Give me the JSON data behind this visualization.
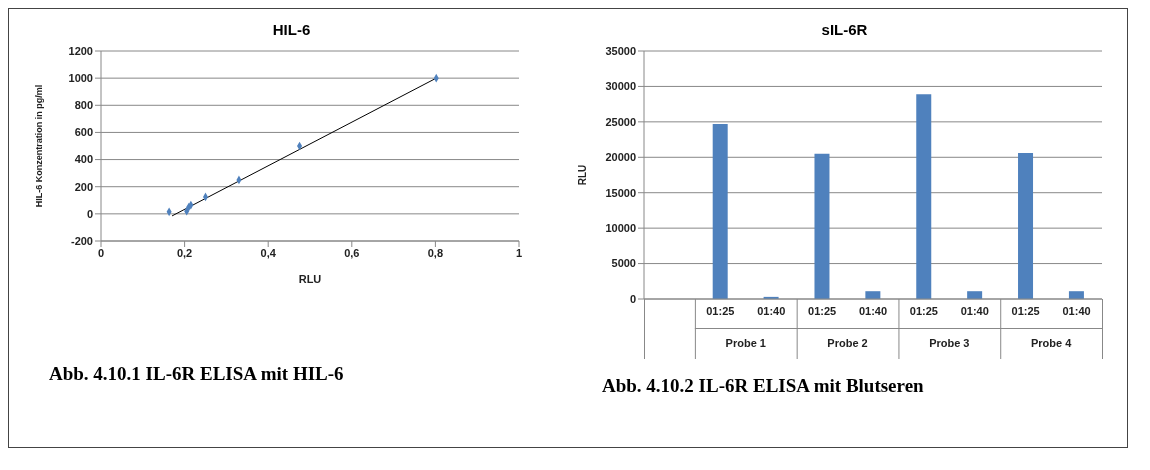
{
  "chart_data": [
    {
      "type": "scatter",
      "title": "HIL-6",
      "xlabel": "RLU",
      "ylabel": "HIL-6 Konzentration in pg/ml",
      "series": [
        {
          "type": "scatter",
          "color": "#4f81bd",
          "marker": "diamond",
          "x": [
            0.163,
            0.205,
            0.21,
            0.215,
            0.25,
            0.33,
            0.475,
            0.802
          ],
          "values": [
            15,
            20,
            50,
            65,
            125,
            250,
            500,
            1000
          ]
        },
        {
          "type": "line",
          "color": "#000000",
          "marker": "none",
          "x": [
            0.17,
            0.802
          ],
          "values": [
            -15,
            1000
          ]
        }
      ],
      "xlim": [
        0,
        1
      ],
      "xticks": [
        0,
        {
          "value": 0.2,
          "label": "0,2"
        },
        {
          "value": 0.4,
          "label": "0,4"
        },
        {
          "value": 0.6,
          "label": "0,6"
        },
        {
          "value": 0.8,
          "label": "0,8"
        },
        1
      ],
      "ylim": [
        -200,
        1200
      ],
      "yticks": [
        -200,
        0,
        200,
        400,
        600,
        800,
        1000,
        1200
      ],
      "grid": "y",
      "legend": false,
      "annotations": [
        "Abb. 4.10.1 IL-6R ELISA mit HIL-6"
      ]
    },
    {
      "type": "bar",
      "title": "sIL-6R",
      "ylabel": "RLU",
      "categories": [
        null,
        "01:25",
        "01:40",
        "01:25",
        "01:40",
        "01:25",
        "01:40",
        "01:25",
        "01:40"
      ],
      "values": [
        null,
        24700,
        300,
        20500,
        1100,
        28900,
        1100,
        20600,
        1100
      ],
      "color": "#4f81bd",
      "ylim": [
        0,
        35000
      ],
      "yticks": [
        0,
        5000,
        10000,
        15000,
        20000,
        25000,
        30000,
        35000
      ],
      "grid": "y",
      "legend": false,
      "annotations": [
        "Probe 1",
        "Probe 2",
        "Probe 3",
        "Probe 4",
        "Abb. 4.10.2 IL-6R ELISA mit Blutseren"
      ]
    }
  ]
}
